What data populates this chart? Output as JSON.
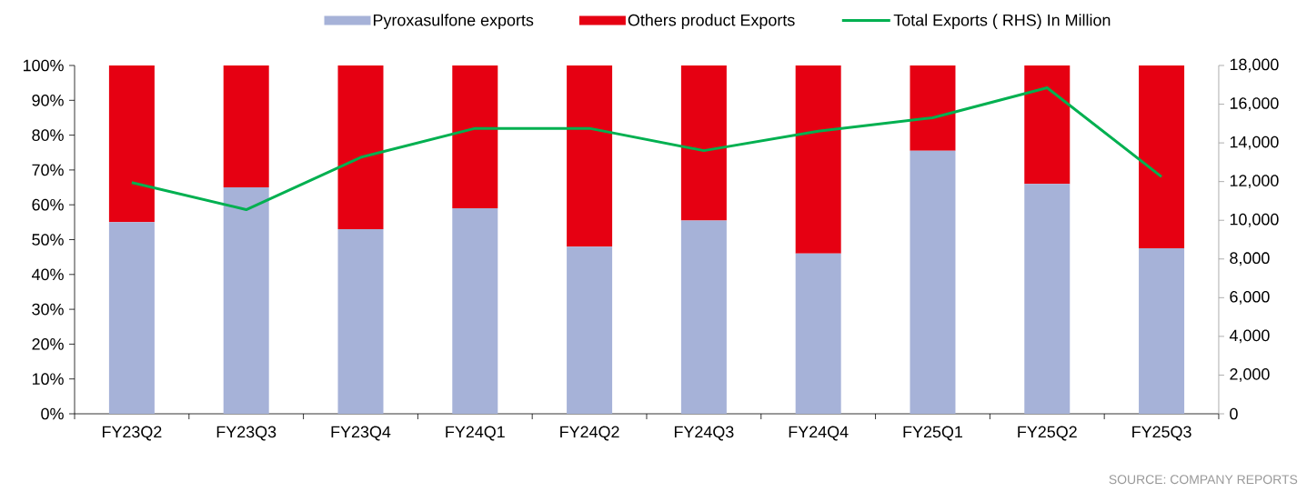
{
  "chart_data": {
    "type": "bar",
    "stacked": true,
    "legend": "top",
    "marker": "none",
    "categories": [
      "FY23Q2",
      "FY23Q3",
      "FY23Q4",
      "FY24Q1",
      "FY24Q2",
      "FY24Q3",
      "FY24Q4",
      "FY25Q1",
      "FY25Q2",
      "FY25Q3"
    ],
    "series": [
      {
        "name": "Pyroxasulfone exports",
        "color": "#a6b2d8",
        "values": [
          55,
          65,
          53,
          59,
          48,
          55.5,
          46,
          75.5,
          66,
          47.5
        ]
      },
      {
        "name": "Others  product Exports",
        "color": "#e60012",
        "values": [
          45,
          35,
          47,
          41,
          52,
          44.5,
          54,
          24.5,
          34,
          52.5
        ]
      },
      {
        "name": "Total Exports ( RHS) In Million",
        "type": "line",
        "axis": "y2",
        "color": "#00b050",
        "values": [
          11950,
          10550,
          13250,
          14750,
          14750,
          13600,
          14600,
          15300,
          16850,
          12250
        ]
      }
    ],
    "ylim": [
      0,
      100
    ],
    "yticks": [
      {
        "value": 0,
        "label": "0%"
      },
      {
        "value": 10,
        "label": "10%"
      },
      {
        "value": 20,
        "label": "20%"
      },
      {
        "value": 30,
        "label": "30%"
      },
      {
        "value": 40,
        "label": "40%"
      },
      {
        "value": 50,
        "label": "50%"
      },
      {
        "value": 60,
        "label": "60%"
      },
      {
        "value": 70,
        "label": "70%"
      },
      {
        "value": 80,
        "label": "80%"
      },
      {
        "value": 90,
        "label": "90%"
      },
      {
        "value": 100,
        "label": "100%"
      }
    ],
    "y2lim": [
      0,
      18000
    ],
    "y2ticks": [
      0,
      {
        "value": 2000,
        "label": "2,000"
      },
      {
        "value": 4000,
        "label": "4,000"
      },
      {
        "value": 6000,
        "label": "6,000"
      },
      {
        "value": 8000,
        "label": "8,000"
      },
      {
        "value": 10000,
        "label": "10,000"
      },
      {
        "value": 12000,
        "label": "12,000"
      },
      {
        "value": 14000,
        "label": "14,000"
      },
      {
        "value": 16000,
        "label": "16,000"
      },
      {
        "value": 18000,
        "label": "18,000"
      }
    ],
    "annotations": [
      "SOURCE: COMPANY REPORTS"
    ]
  }
}
